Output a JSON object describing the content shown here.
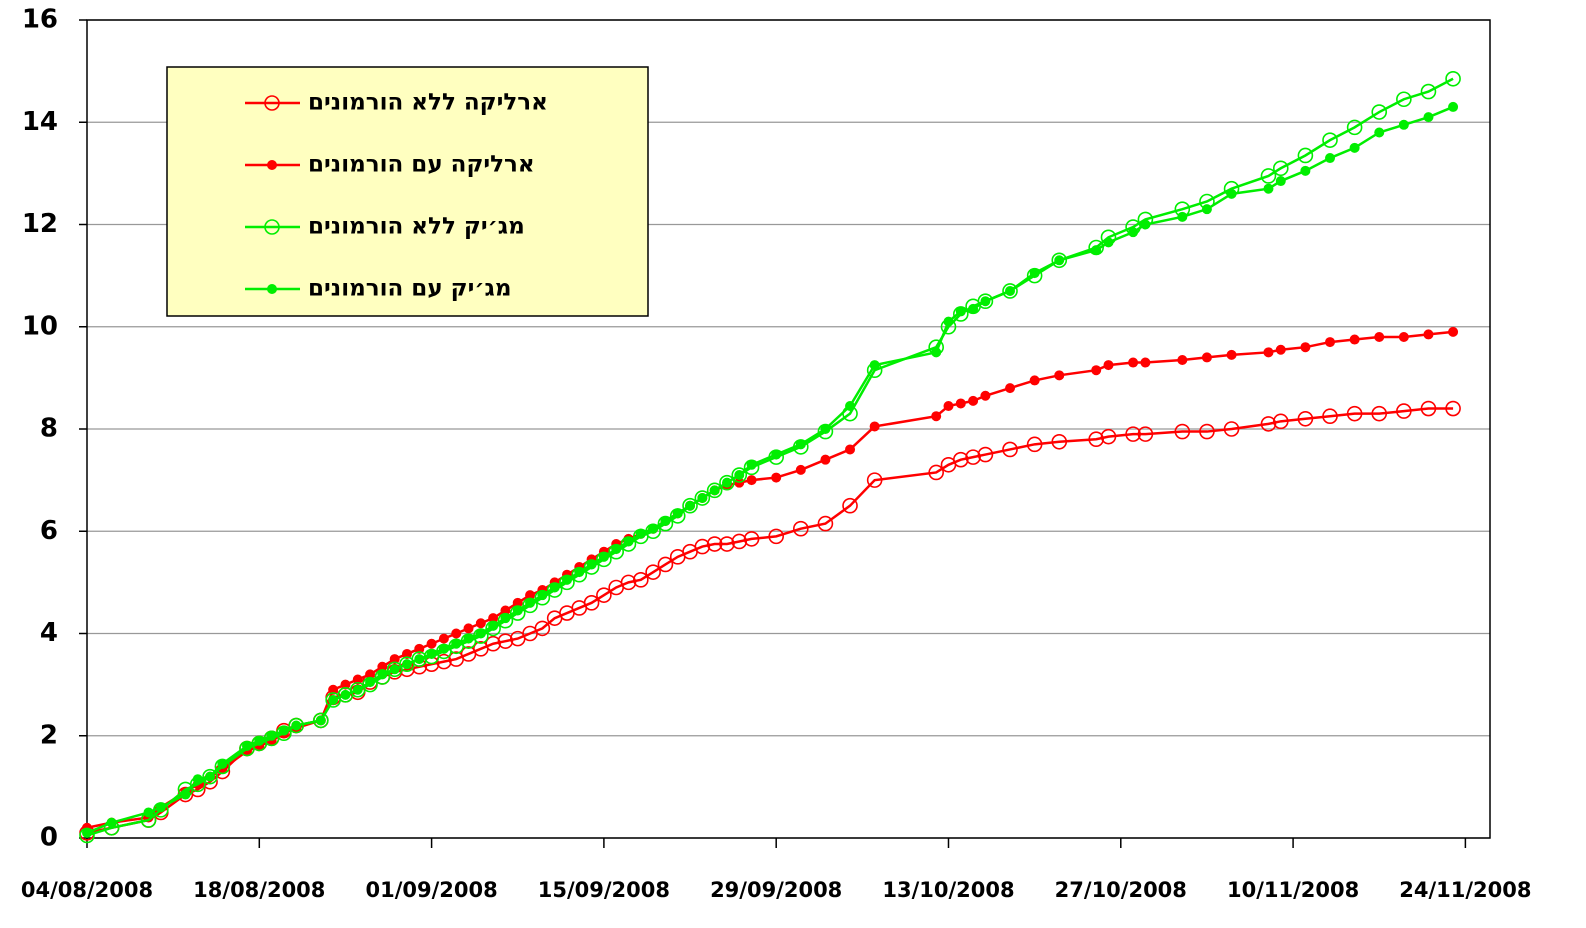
{
  "chart_data": {
    "type": "line",
    "x": [
      "04/08/2008",
      "06/08/2008",
      "09/08/2008",
      "10/08/2008",
      "12/08/2008",
      "13/08/2008",
      "14/08/2008",
      "15/08/2008",
      "17/08/2008",
      "18/08/2008",
      "19/08/2008",
      "20/08/2008",
      "21/08/2008",
      "23/08/2008",
      "24/08/2008",
      "25/08/2008",
      "26/08/2008",
      "27/08/2008",
      "28/08/2008",
      "29/08/2008",
      "30/08/2008",
      "31/08/2008",
      "01/09/2008",
      "02/09/2008",
      "03/09/2008",
      "04/09/2008",
      "05/09/2008",
      "06/09/2008",
      "07/09/2008",
      "08/09/2008",
      "09/09/2008",
      "10/09/2008",
      "11/09/2008",
      "12/09/2008",
      "13/09/2008",
      "14/09/2008",
      "15/09/2008",
      "16/09/2008",
      "17/09/2008",
      "18/09/2008",
      "19/09/2008",
      "20/09/2008",
      "21/09/2008",
      "22/09/2008",
      "23/09/2008",
      "24/09/2008",
      "25/09/2008",
      "26/09/2008",
      "27/09/2008",
      "29/09/2008",
      "01/10/2008",
      "03/10/2008",
      "05/10/2008",
      "07/10/2008",
      "12/10/2008",
      "13/10/2008",
      "14/10/2008",
      "15/10/2008",
      "16/10/2008",
      "18/10/2008",
      "20/10/2008",
      "22/10/2008",
      "25/10/2008",
      "26/10/2008",
      "28/10/2008",
      "29/10/2008",
      "01/11/2008",
      "03/11/2008",
      "05/11/2008",
      "08/11/2008",
      "09/11/2008",
      "11/11/2008",
      "13/11/2008",
      "15/11/2008",
      "17/11/2008",
      "19/11/2008",
      "21/11/2008",
      "23/11/2008"
    ],
    "series": [
      {
        "name": "ארליקה ללא הורמונים",
        "color": "#ff0000",
        "marker": "open",
        "values": [
          0.1,
          0.2,
          0.35,
          0.5,
          0.85,
          0.95,
          1.1,
          1.3,
          1.75,
          1.85,
          1.95,
          2.1,
          2.2,
          2.3,
          2.75,
          2.8,
          2.85,
          3.05,
          3.15,
          3.25,
          3.3,
          3.35,
          3.4,
          3.45,
          3.5,
          3.6,
          3.7,
          3.8,
          3.85,
          3.9,
          4.0,
          4.1,
          4.3,
          4.4,
          4.5,
          4.6,
          4.75,
          4.9,
          5.0,
          5.05,
          5.2,
          5.35,
          5.5,
          5.6,
          5.7,
          5.75,
          5.75,
          5.8,
          5.85,
          5.9,
          6.05,
          6.15,
          6.5,
          7.0,
          7.15,
          7.3,
          7.4,
          7.45,
          7.5,
          7.6,
          7.7,
          7.75,
          7.8,
          7.85,
          7.9,
          7.9,
          7.95,
          7.95,
          8.0,
          8.1,
          8.15,
          8.2,
          8.25,
          8.3,
          8.3,
          8.35,
          8.4,
          8.4
        ]
      },
      {
        "name": "ארליקה עם הורמונים",
        "color": "#ff0000",
        "marker": "filled",
        "values": [
          0.2,
          0.3,
          0.4,
          0.6,
          0.9,
          1.05,
          1.2,
          1.35,
          1.7,
          1.8,
          1.9,
          2.05,
          2.15,
          2.3,
          2.9,
          3.0,
          3.1,
          3.2,
          3.35,
          3.5,
          3.6,
          3.7,
          3.8,
          3.9,
          4.0,
          4.1,
          4.2,
          4.3,
          4.45,
          4.6,
          4.75,
          4.85,
          5.0,
          5.15,
          5.3,
          5.45,
          5.6,
          5.75,
          5.85,
          5.95,
          6.05,
          6.2,
          6.35,
          6.5,
          6.65,
          6.8,
          6.9,
          6.95,
          7.0,
          7.05,
          7.2,
          7.4,
          7.6,
          8.05,
          8.25,
          8.45,
          8.5,
          8.55,
          8.65,
          8.8,
          8.95,
          9.05,
          9.15,
          9.25,
          9.3,
          9.3,
          9.35,
          9.4,
          9.45,
          9.5,
          9.55,
          9.6,
          9.7,
          9.75,
          9.8,
          9.8,
          9.85,
          9.9
        ]
      },
      {
        "name": "מג׳יק ללא הורמונים",
        "color": "#00ee00",
        "marker": "open",
        "values": [
          0.05,
          0.2,
          0.35,
          0.55,
          0.95,
          1.05,
          1.2,
          1.4,
          1.75,
          1.85,
          1.95,
          2.05,
          2.2,
          2.3,
          2.7,
          2.8,
          2.9,
          3.0,
          3.15,
          3.3,
          3.4,
          3.5,
          3.55,
          3.65,
          3.75,
          3.85,
          3.95,
          4.1,
          4.25,
          4.4,
          4.55,
          4.7,
          4.85,
          5.0,
          5.15,
          5.3,
          5.45,
          5.6,
          5.75,
          5.9,
          6.0,
          6.15,
          6.3,
          6.5,
          6.65,
          6.8,
          6.95,
          7.1,
          7.25,
          7.45,
          7.65,
          7.95,
          8.3,
          9.15,
          9.6,
          10.0,
          10.25,
          10.4,
          10.5,
          10.7,
          11.0,
          11.3,
          11.55,
          11.75,
          11.95,
          12.1,
          12.3,
          12.45,
          12.7,
          12.95,
          13.1,
          13.35,
          13.65,
          13.9,
          14.2,
          14.45,
          14.6,
          14.85
        ]
      },
      {
        "name": "מג׳יק עם הורמונים",
        "color": "#00ee00",
        "marker": "filled",
        "values": [
          0.1,
          0.3,
          0.5,
          0.6,
          0.85,
          1.15,
          1.2,
          1.45,
          1.8,
          1.9,
          2.0,
          2.1,
          2.2,
          2.3,
          2.7,
          2.8,
          2.9,
          3.05,
          3.2,
          3.3,
          3.4,
          3.5,
          3.6,
          3.7,
          3.8,
          3.9,
          4.0,
          4.15,
          4.3,
          4.45,
          4.6,
          4.75,
          4.9,
          5.05,
          5.2,
          5.35,
          5.5,
          5.65,
          5.8,
          5.95,
          6.05,
          6.2,
          6.35,
          6.5,
          6.65,
          6.8,
          6.95,
          7.1,
          7.3,
          7.5,
          7.7,
          8.0,
          8.45,
          9.25,
          9.5,
          10.1,
          10.3,
          10.35,
          10.5,
          10.7,
          11.05,
          11.3,
          11.5,
          11.65,
          11.85,
          12.0,
          12.15,
          12.3,
          12.6,
          12.7,
          12.85,
          13.05,
          13.3,
          13.5,
          13.8,
          13.95,
          14.1,
          14.3
        ]
      }
    ],
    "xlim": [
      "04/08/2008",
      "26/11/2008"
    ],
    "xticks": [
      "04/08/2008",
      "18/08/2008",
      "01/09/2008",
      "15/09/2008",
      "29/09/2008",
      "13/10/2008",
      "27/10/2008",
      "10/11/2008",
      "24/11/2008"
    ],
    "ylim": [
      0,
      16
    ],
    "yticks": [
      0,
      2,
      4,
      6,
      8,
      10,
      12,
      14,
      16
    ],
    "grid": true,
    "legend": "upper left"
  }
}
